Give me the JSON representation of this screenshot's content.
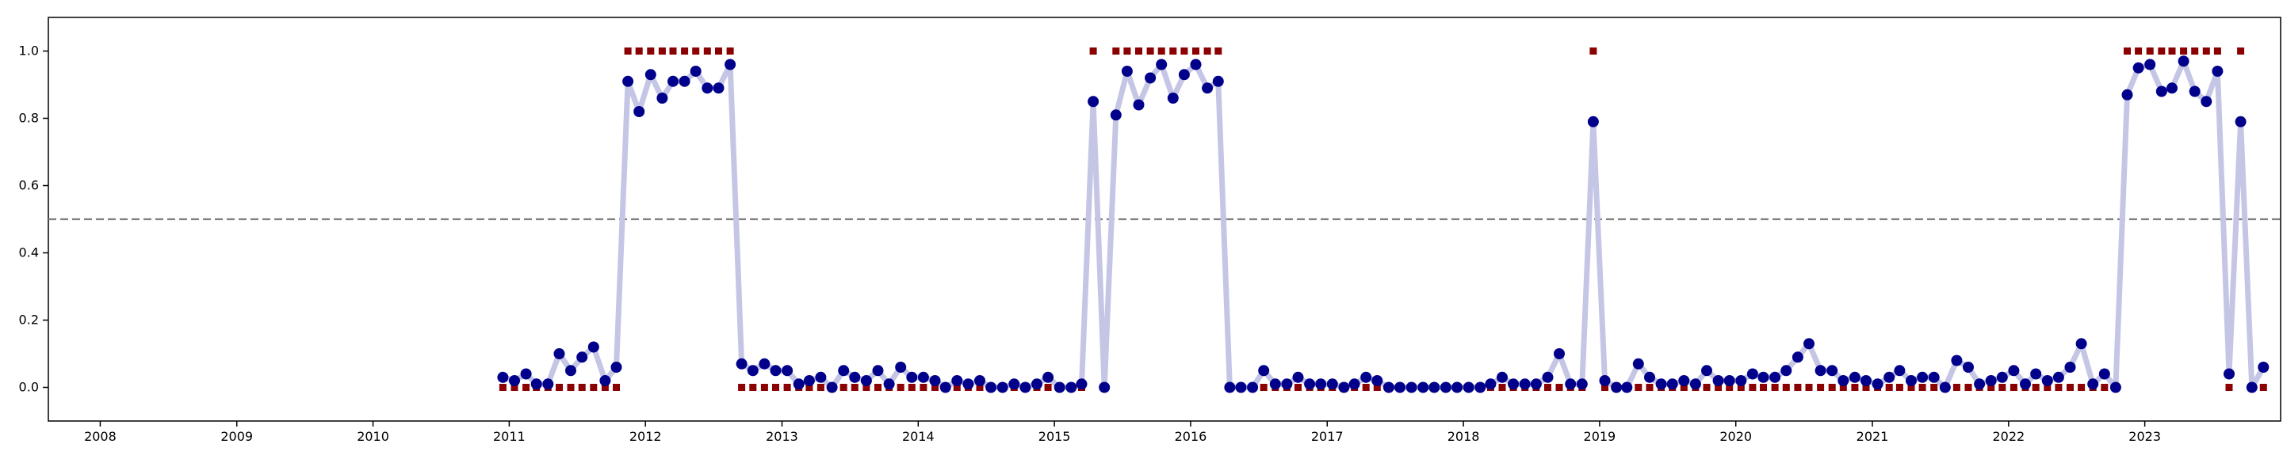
{
  "chart_data": {
    "type": "line",
    "title": "",
    "xlabel": "",
    "ylabel": "",
    "xlim": [
      "2007-08-15",
      "2023-12-31"
    ],
    "ylim": [
      -0.1,
      1.1
    ],
    "x_tick_labels": [
      "2008",
      "2009",
      "2010",
      "2011",
      "2012",
      "2013",
      "2014",
      "2015",
      "2016",
      "2017",
      "2018",
      "2019",
      "2020",
      "2021",
      "2022",
      "2023"
    ],
    "y_ticks": [
      0.0,
      0.2,
      0.4,
      0.6,
      0.8,
      1.0
    ],
    "y_tick_labels": [
      "0.0",
      "0.2",
      "0.4",
      "0.6",
      "0.8",
      "1.0"
    ],
    "grid": false,
    "threshold": {
      "y": 0.5,
      "style": "dashed",
      "color": "#808080"
    },
    "colors": {
      "line": "#c5c5e5",
      "points": "#00008b",
      "labels": "#8b0000"
    },
    "x_start": "2010-12",
    "series": [
      {
        "values": [
          0.03,
          0.02,
          0.04,
          0.01,
          0.01,
          0.1,
          0.05,
          0.09,
          0.12,
          0.02,
          0.06,
          0.91,
          0.82,
          0.93,
          0.86,
          0.91,
          0.91,
          0.94,
          0.89,
          0.89,
          0.96,
          0.07,
          0.05,
          0.07,
          0.05,
          0.05,
          0.01,
          0.02,
          0.03,
          0.0,
          0.05,
          0.03,
          0.02,
          0.05,
          0.01,
          0.06,
          0.03,
          0.03,
          0.02,
          0.0,
          0.02,
          0.01,
          0.02,
          0.0,
          0.0,
          0.01,
          0.0,
          0.01,
          0.03,
          0.0,
          0.0,
          0.01,
          0.85,
          0.0,
          0.81,
          0.94,
          0.84,
          0.92,
          0.96,
          0.86,
          0.93,
          0.96,
          0.89,
          0.91,
          0.0,
          0.0,
          0.0,
          0.05,
          0.01,
          0.01,
          0.03,
          0.01,
          0.01,
          0.01,
          0.0,
          0.01,
          0.03,
          0.02,
          0.0,
          0.0,
          0.0,
          0.0,
          0.0,
          0.0,
          0.0,
          0.0,
          0.0,
          0.01,
          0.03,
          0.01,
          0.01,
          0.01,
          0.03,
          0.1,
          0.01,
          0.01,
          0.79,
          0.02,
          0.0,
          0.0,
          0.07,
          0.03,
          0.01,
          0.01,
          0.02,
          0.01,
          0.05,
          0.02,
          0.02,
          0.02,
          0.04,
          0.03,
          0.03,
          0.05,
          0.09,
          0.13,
          0.05,
          0.05,
          0.02,
          0.03,
          0.02,
          0.01,
          0.03,
          0.05,
          0.02,
          0.03,
          0.03,
          0.0,
          0.08,
          0.06,
          0.01,
          0.02,
          0.03,
          0.05,
          0.01,
          0.04,
          0.02,
          0.03,
          0.06,
          0.13,
          0.01,
          0.04,
          0.0,
          0.87,
          0.95,
          0.96,
          0.88,
          0.89,
          0.97,
          0.88,
          0.85,
          0.94,
          0.04,
          0.79,
          0.0,
          0.06
        ]
      },
      {
        "values": [
          0,
          0,
          0,
          0,
          0,
          0,
          0,
          0,
          0,
          0,
          0,
          1,
          1,
          1,
          1,
          1,
          1,
          1,
          1,
          1,
          1,
          0,
          0,
          0,
          0,
          0,
          0,
          0,
          0,
          0,
          0,
          0,
          0,
          0,
          0,
          0,
          0,
          0,
          0,
          0,
          0,
          0,
          0,
          0,
          0,
          0,
          0,
          0,
          0,
          0,
          0,
          0,
          1,
          0,
          1,
          1,
          1,
          1,
          1,
          1,
          1,
          1,
          1,
          1,
          0,
          0,
          0,
          0,
          0,
          0,
          0,
          0,
          0,
          0,
          0,
          0,
          0,
          0,
          0,
          0,
          0,
          0,
          0,
          0,
          0,
          0,
          0,
          0,
          0,
          0,
          0,
          0,
          0,
          0,
          0,
          0,
          1,
          0,
          0,
          0,
          0,
          0,
          0,
          0,
          0,
          0,
          0,
          0,
          0,
          0,
          0,
          0,
          0,
          0,
          0,
          0,
          0,
          0,
          0,
          0,
          0,
          0,
          0,
          0,
          0,
          0,
          0,
          0,
          0,
          0,
          0,
          0,
          0,
          0,
          0,
          0,
          0,
          0,
          0,
          0,
          0,
          0,
          0,
          1,
          1,
          1,
          1,
          1,
          1,
          1,
          1,
          1,
          0,
          1,
          0,
          0
        ]
      }
    ]
  }
}
